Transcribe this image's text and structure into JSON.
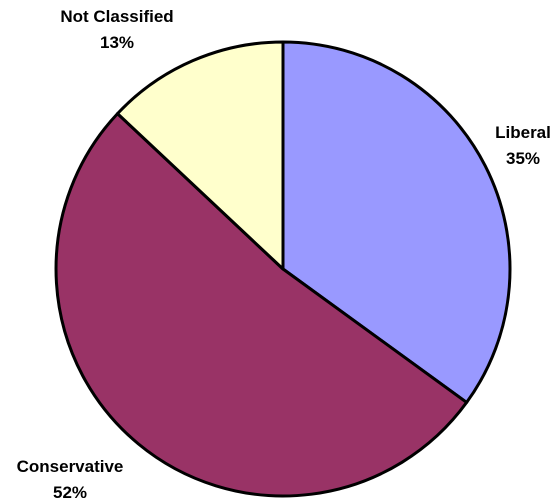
{
  "chart_data": {
    "type": "pie",
    "title": "",
    "start_angle_deg": 0,
    "direction": "clockwise",
    "legend": "none",
    "slices": [
      {
        "label": "Liberal",
        "value": 35,
        "display": "35%",
        "color": "#9999FF"
      },
      {
        "label": "Conservative",
        "value": 52,
        "display": "52%",
        "color": "#993366"
      },
      {
        "label": "Not Classified",
        "value": 13,
        "display": "13%",
        "color": "#FFFFCC"
      }
    ]
  }
}
